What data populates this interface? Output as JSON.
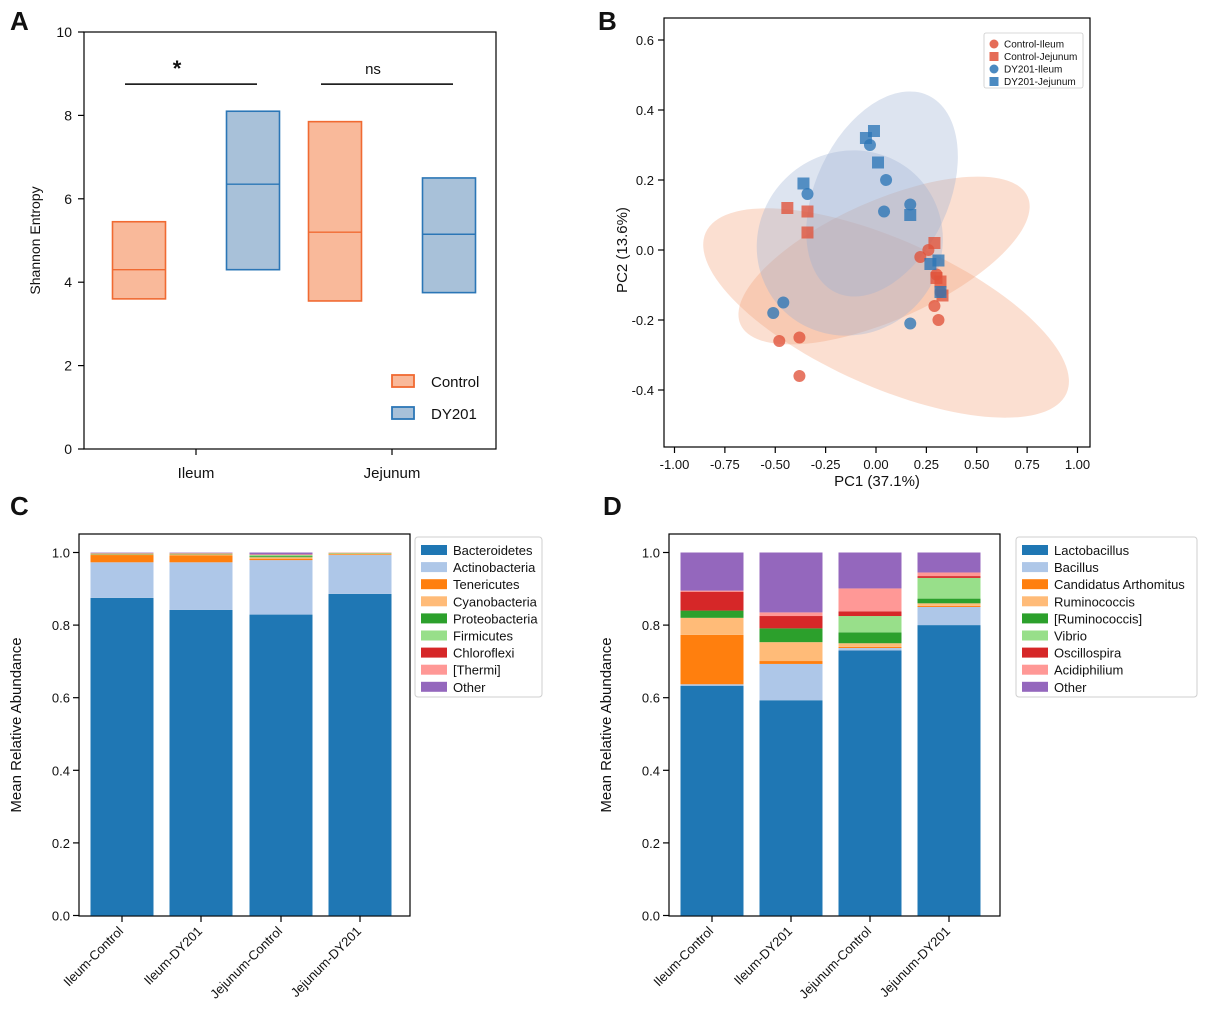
{
  "panels": [
    "A",
    "B",
    "C",
    "D"
  ],
  "colors": {
    "control": "#f06a32",
    "control_fill": "#f9b99a",
    "dy201": "#2b76b6",
    "dy201_fill": "#a8c1d9"
  },
  "chart_data": [
    {
      "panel": "A",
      "type": "box",
      "categories": [
        "Ileum",
        "Jejunum"
      ],
      "ylabel": "Shannon Entropy",
      "ylim": [
        0,
        10
      ],
      "yticks": [
        "0",
        "2",
        "4",
        "6",
        "8",
        "10"
      ],
      "series": [
        {
          "name": "Control",
          "color": "#f06a32",
          "boxes": [
            {
              "low": 3.6,
              "median": 4.3,
              "high": 5.45
            },
            {
              "low": 3.55,
              "median": 5.2,
              "high": 7.85
            }
          ]
        },
        {
          "name": "DY201",
          "color": "#2b76b6",
          "boxes": [
            {
              "low": 4.3,
              "median": 6.35,
              "high": 8.1
            },
            {
              "low": 3.75,
              "median": 5.15,
              "high": 6.5
            }
          ]
        }
      ],
      "annotations": [
        {
          "category": "Ileum",
          "label": "*",
          "y": 8.75
        },
        {
          "category": "Jejunum",
          "label": "ns",
          "y": 8.75
        }
      ],
      "legend": "bottom-right"
    },
    {
      "panel": "B",
      "type": "scatter",
      "xlabel": "PC1 (37.1%)",
      "ylabel": "PC2 (13.6%)",
      "xlim": [
        -1.0,
        1.0
      ],
      "ylim": [
        -0.55,
        0.63
      ],
      "xticks": [
        "-1.00",
        "-0.75",
        "-0.50",
        "-0.25",
        "0.00",
        "0.25",
        "0.50",
        "0.75",
        "1.00"
      ],
      "yticks": [
        "-0.4",
        "-0.2",
        "0.0",
        "0.2",
        "0.4",
        "0.6"
      ],
      "legend": "top-right",
      "series": [
        {
          "name": "Control-Ileum",
          "marker": "circle",
          "color": "#e0523a",
          "points": [
            [
              -0.38,
              -0.36
            ],
            [
              -0.48,
              -0.26
            ],
            [
              -0.38,
              -0.25
            ],
            [
              0.26,
              0.0
            ],
            [
              0.22,
              -0.02
            ],
            [
              0.29,
              -0.16
            ],
            [
              0.31,
              -0.2
            ],
            [
              0.3,
              -0.07
            ],
            [
              0.32,
              -0.12
            ]
          ]
        },
        {
          "name": "Control-Jejunum",
          "marker": "square",
          "color": "#e0523a",
          "points": [
            [
              -0.44,
              0.12
            ],
            [
              -0.34,
              0.11
            ],
            [
              -0.34,
              0.05
            ],
            [
              0.29,
              0.02
            ],
            [
              0.3,
              -0.08
            ],
            [
              0.32,
              -0.09
            ],
            [
              0.33,
              -0.13
            ]
          ]
        },
        {
          "name": "DY201-Ileum",
          "marker": "circle",
          "color": "#2b76b6",
          "points": [
            [
              -0.03,
              0.3
            ],
            [
              0.05,
              0.2
            ],
            [
              0.04,
              0.11
            ],
            [
              0.17,
              0.13
            ],
            [
              -0.34,
              0.16
            ],
            [
              -0.46,
              -0.15
            ],
            [
              -0.51,
              -0.18
            ],
            [
              0.17,
              -0.21
            ]
          ]
        },
        {
          "name": "DY201-Jejunum",
          "marker": "square",
          "color": "#2b76b6",
          "points": [
            [
              -0.05,
              0.32
            ],
            [
              -0.01,
              0.34
            ],
            [
              0.01,
              0.25
            ],
            [
              0.17,
              0.1
            ],
            [
              -0.36,
              0.19
            ],
            [
              0.27,
              -0.04
            ],
            [
              0.31,
              -0.03
            ],
            [
              0.32,
              -0.12
            ]
          ]
        }
      ],
      "ellipses": [
        {
          "series": "Control-Ileum",
          "cx": 0.05,
          "cy": -0.18,
          "rx": 0.98,
          "ry": 0.21,
          "angle": 24,
          "color": "#f4a27a"
        },
        {
          "series": "Control-Jejunum",
          "cx": 0.04,
          "cy": -0.03,
          "rx": 0.78,
          "ry": 0.17,
          "angle": -24,
          "color": "#f4a27a"
        },
        {
          "series": "DY201-Ileum",
          "cx": -0.13,
          "cy": 0.02,
          "rx": 0.47,
          "ry": 0.26,
          "angle": -42,
          "color": "#9db1d3"
        },
        {
          "series": "DY201-Jejunum",
          "cx": 0.03,
          "cy": 0.16,
          "rx": 0.54,
          "ry": 0.19,
          "angle": -65,
          "color": "#9db1d3"
        }
      ]
    },
    {
      "panel": "C",
      "type": "bar",
      "stacked": true,
      "ylabel": "Mean Relative Abundance",
      "ylim": [
        0,
        1.0
      ],
      "yticks": [
        "0.0",
        "0.2",
        "0.4",
        "0.6",
        "0.8",
        "1.0"
      ],
      "categories": [
        "Ileum-Control",
        "Ileum-DY201",
        "Jejunum-Control",
        "Jejunum-DY201"
      ],
      "legend": "top-right",
      "series": [
        {
          "name": "Bacteroidetes",
          "color": "#1f77b4",
          "values": [
            0.875,
            0.842,
            0.829,
            0.886
          ]
        },
        {
          "name": "Actinobacteria",
          "color": "#aec7e8",
          "values": [
            0.098,
            0.131,
            0.15,
            0.107
          ]
        },
        {
          "name": "Tenericutes",
          "color": "#ff7f0e",
          "values": [
            0.02,
            0.019,
            0.004,
            0.002
          ]
        },
        {
          "name": "Cyanobacteria",
          "color": "#ffbb78",
          "values": [
            0.002,
            0.003,
            0.004,
            0.002
          ]
        },
        {
          "name": "Proteobacteria",
          "color": "#2ca02c",
          "values": [
            0.001,
            0.001,
            0.003,
            0.001
          ]
        },
        {
          "name": "Firmicutes",
          "color": "#98df8a",
          "values": [
            0.001,
            0.001,
            0.003,
            0.001
          ]
        },
        {
          "name": "Chloroflexi",
          "color": "#d62728",
          "values": [
            0.001,
            0.001,
            0.001,
            0.0005
          ]
        },
        {
          "name": "[Thermi]",
          "color": "#ff9896",
          "values": [
            0.001,
            0.001,
            0.001,
            0.0005
          ]
        },
        {
          "name": "Other",
          "color": "#9467bd",
          "values": [
            0.001,
            0.001,
            0.005,
            0.0
          ]
        }
      ]
    },
    {
      "panel": "D",
      "type": "bar",
      "stacked": true,
      "ylabel": "Mean Relative Abundance",
      "ylim": [
        0,
        1.0
      ],
      "yticks": [
        "0.0",
        "0.2",
        "0.4",
        "0.6",
        "0.8",
        "1.0"
      ],
      "categories": [
        "Ileum-Control",
        "Ileum-DY201",
        "Jejunum-Control",
        "Jejunum-DY201"
      ],
      "legend": "top-right",
      "series": [
        {
          "name": "Lactobacillus",
          "color": "#1f77b4",
          "values": [
            0.633,
            0.593,
            0.73,
            0.8
          ]
        },
        {
          "name": "Bacillus",
          "color": "#aec7e8",
          "values": [
            0.004,
            0.1,
            0.007,
            0.05
          ]
        },
        {
          "name": "Candidatus Arthomitus",
          "color": "#ff7f0e",
          "values": [
            0.136,
            0.008,
            0.003,
            0.003
          ]
        },
        {
          "name": "Ruminococcis",
          "color": "#ffbb78",
          "values": [
            0.047,
            0.052,
            0.01,
            0.007
          ]
        },
        {
          "name": "[Ruminococcis]",
          "color": "#2ca02c",
          "values": [
            0.02,
            0.038,
            0.03,
            0.013
          ]
        },
        {
          "name": "Vibrio",
          "color": "#98df8a",
          "values": [
            0.0,
            0.0,
            0.045,
            0.057
          ]
        },
        {
          "name": "Oscillospira",
          "color": "#d62728",
          "values": [
            0.052,
            0.034,
            0.013,
            0.005
          ]
        },
        {
          "name": "Acidiphilium",
          "color": "#ff9896",
          "values": [
            0.003,
            0.01,
            0.063,
            0.01
          ]
        },
        {
          "name": "Other",
          "color": "#9467bd",
          "values": [
            0.105,
            0.165,
            0.099,
            0.055
          ]
        }
      ]
    }
  ]
}
